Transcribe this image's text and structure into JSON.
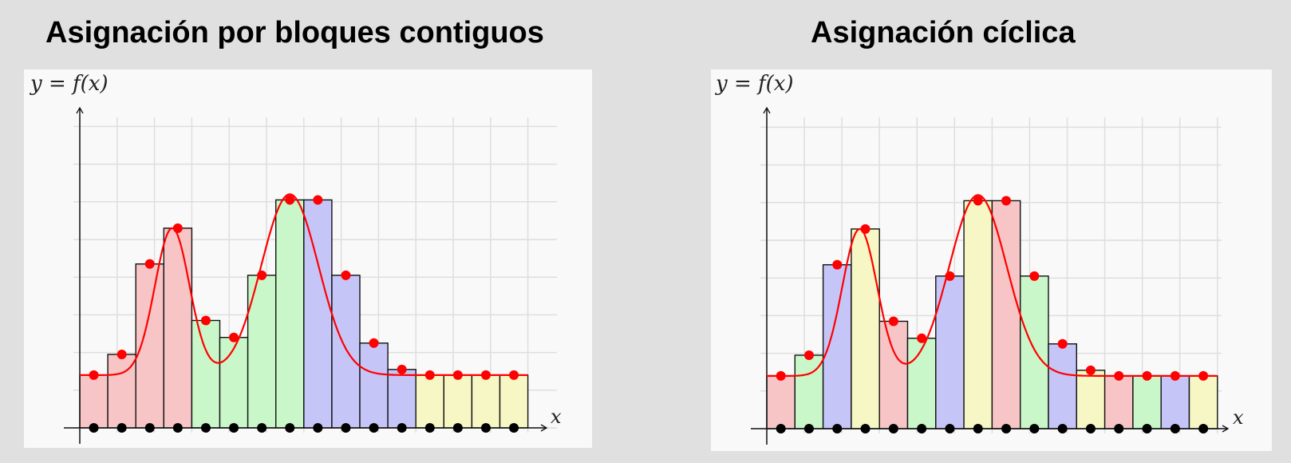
{
  "panels": [
    {
      "id": "left",
      "title": "Asignación por bloques contiguos",
      "assignment": "block",
      "ylabel": "y = f(x)",
      "xlabel": "x"
    },
    {
      "id": "right",
      "title": "Asignación cíclica",
      "assignment": "cyclic",
      "ylabel": "y = f(x)",
      "xlabel": "x"
    }
  ],
  "chart_data": {
    "type": "bar",
    "description_note": "",
    "n_intervals": 16,
    "n_processes": 4,
    "sample_values": [
      1.4,
      1.95,
      4.35,
      5.3,
      2.85,
      2.4,
      4.05,
      6.05,
      6.05,
      4.05,
      2.25,
      1.55,
      1.4,
      1.4,
      1.4,
      1.4
    ],
    "ylim": [
      0,
      8
    ],
    "process_colors": [
      "#f7c5c5",
      "#c9f7c9",
      "#c5c5f7",
      "#f7f7c5"
    ],
    "curve_color": "#ff0000",
    "grid": true
  }
}
